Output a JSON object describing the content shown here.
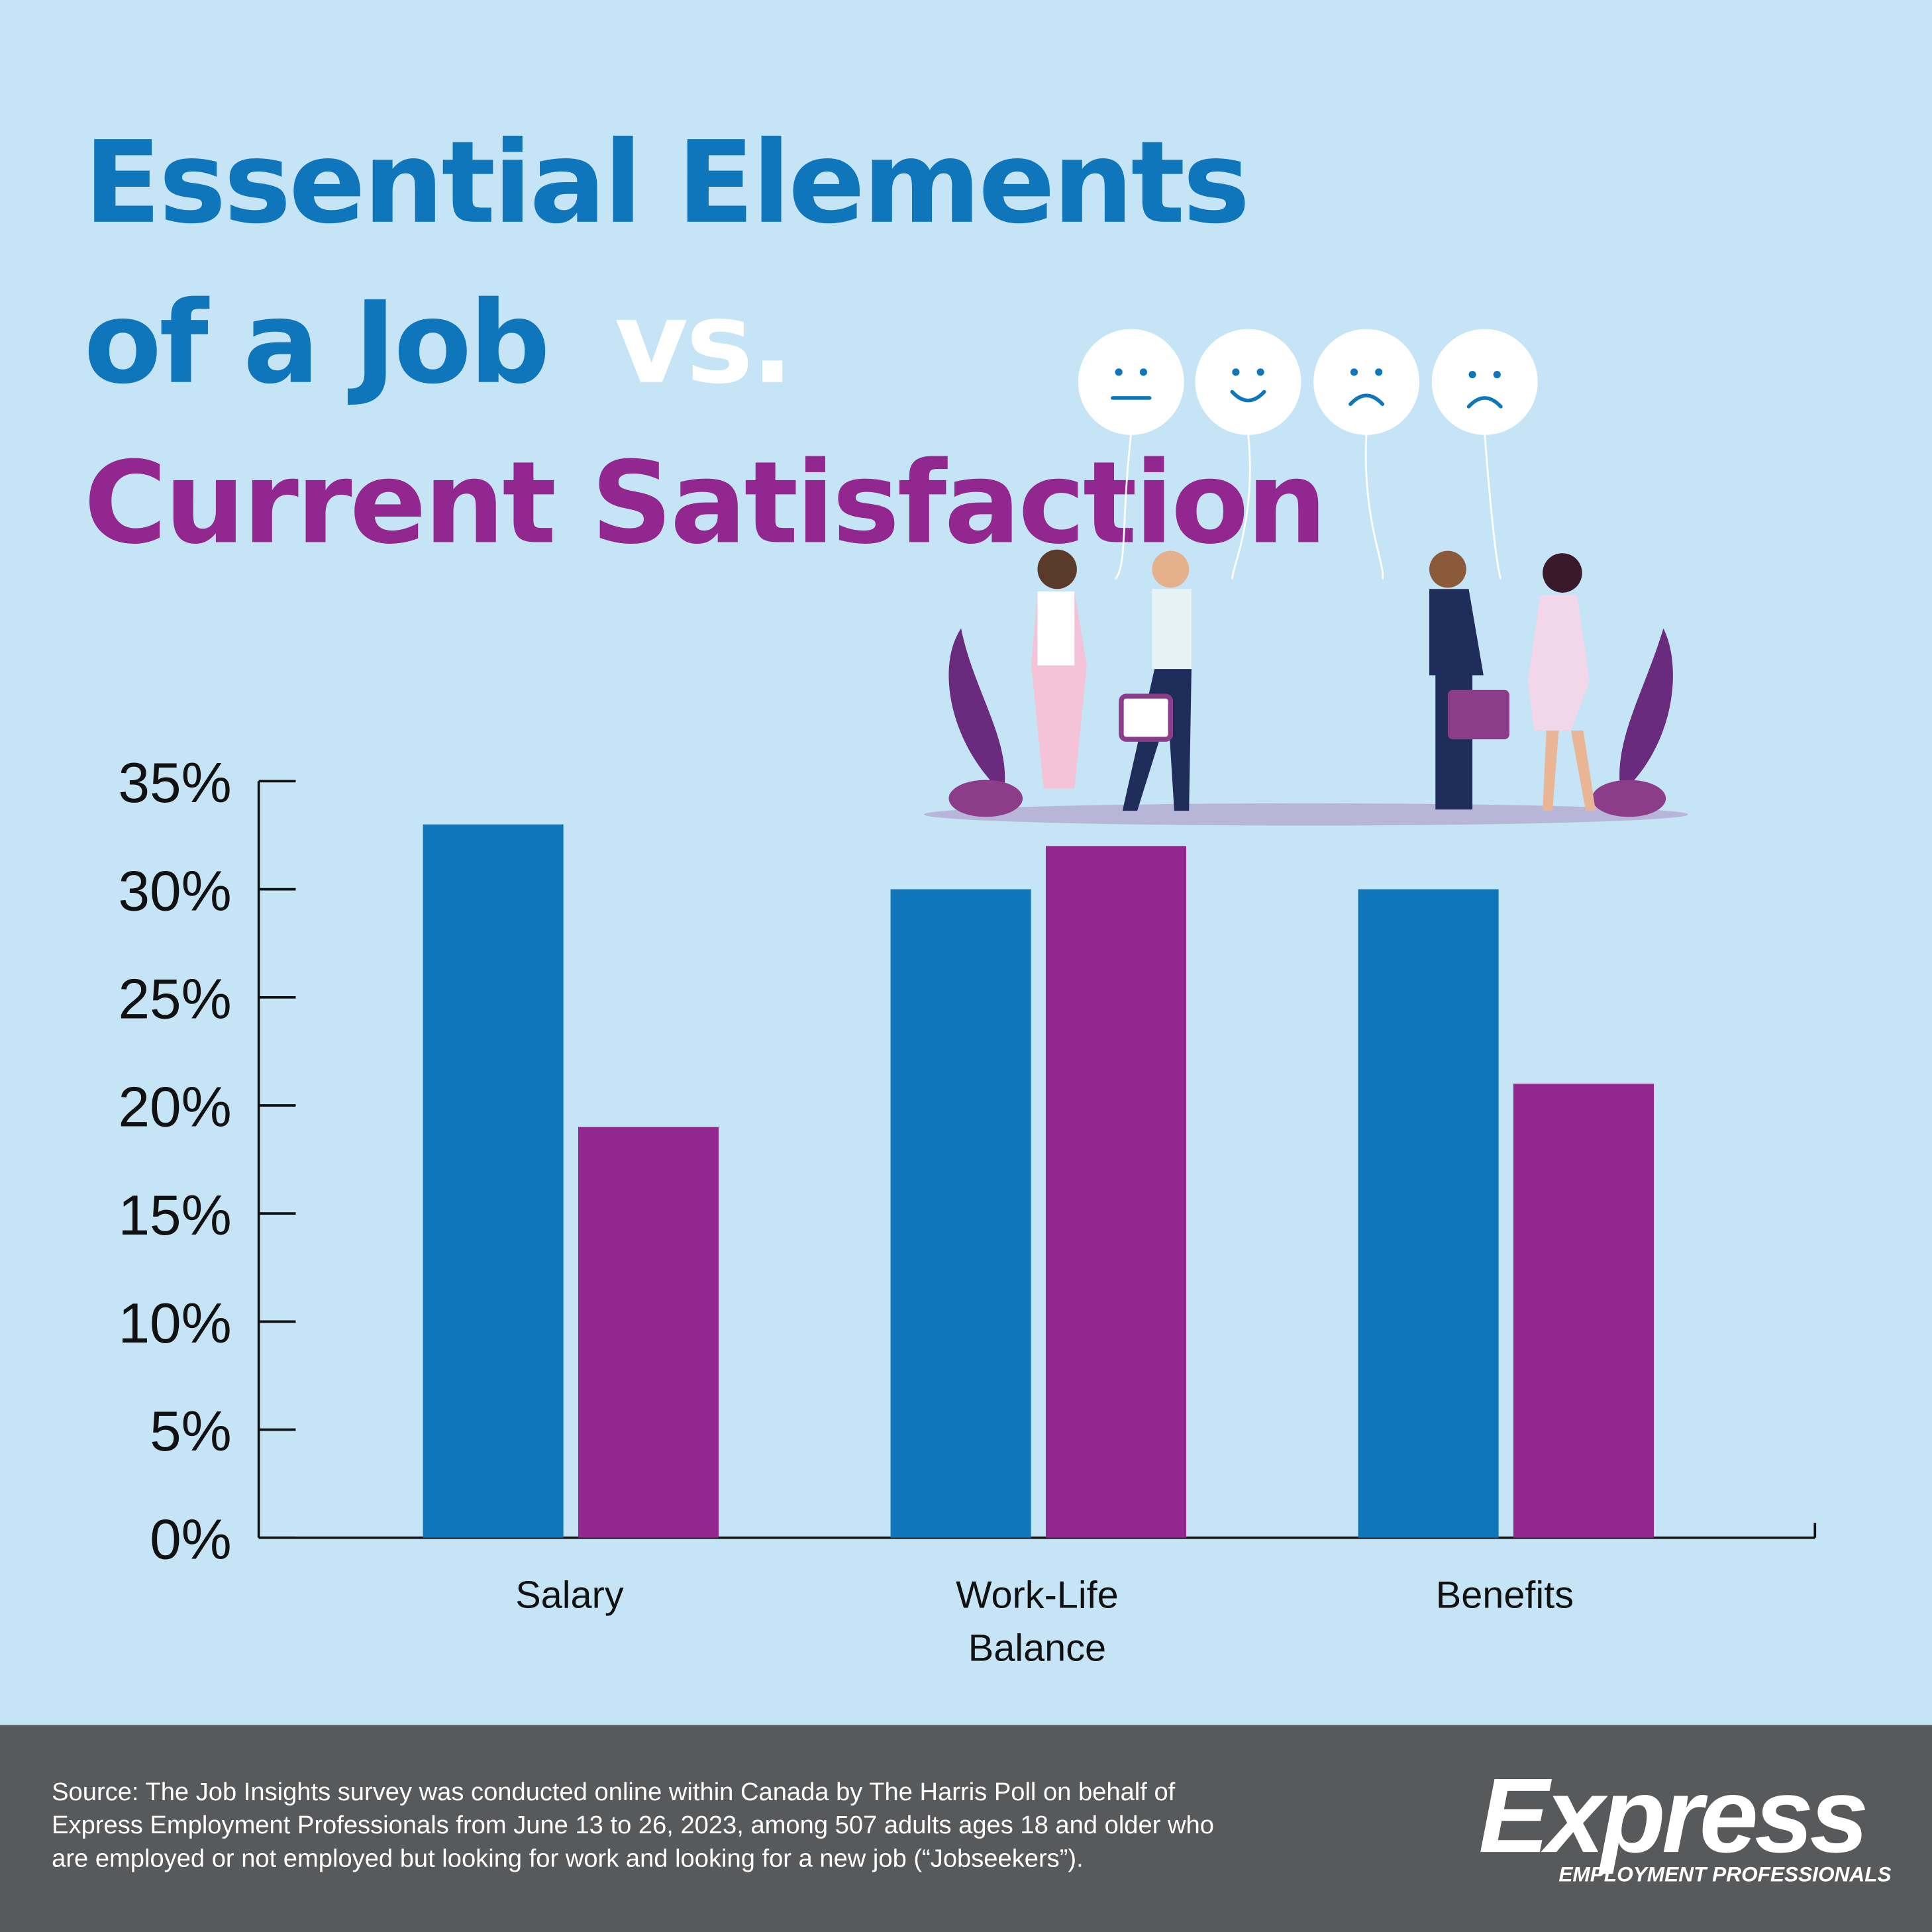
{
  "chart_data": {
    "type": "bar",
    "title_parts": [
      "Essential Elements",
      "of a Job",
      "vs.",
      "Current Satisfaction"
    ],
    "categories": [
      "Salary",
      "Work-Life Balance",
      "Benefits"
    ],
    "series": [
      {
        "color": "#1076bb",
        "values": [
          33,
          30,
          30
        ]
      },
      {
        "color": "#92278f",
        "values": [
          19,
          32,
          21
        ]
      }
    ],
    "ylim": [
      0,
      35
    ],
    "yticks": [
      {
        "value": 0,
        "label": "0%"
      },
      {
        "value": 5,
        "label": "5%"
      },
      {
        "value": 10,
        "label": "10%"
      },
      {
        "value": 15,
        "label": "15%"
      },
      {
        "value": 20,
        "label": "20%"
      },
      {
        "value": 25,
        "label": "25%"
      },
      {
        "value": 30,
        "label": "30%"
      },
      {
        "value": 35,
        "label": "35%"
      }
    ],
    "source_lines": [
      "Source: The Job Insights survey was conducted online within Canada by The Harris Poll on behalf of",
      "Express Employment Professionals from June 13 to 26, 2023, among 507 adults ages 18 and older who",
      "are employed or not employed but looking for work and looking for a new job (“Jobseekers”)."
    ],
    "brand": "Express",
    "brand_tagline": "EMPLOYMENT PROFESSIONALS"
  }
}
